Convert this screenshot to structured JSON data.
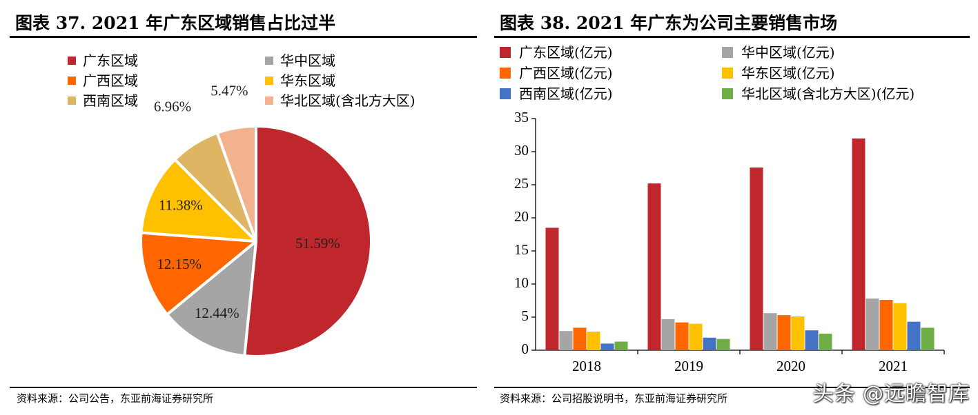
{
  "left_panel": {
    "title": "图表 37. 2021 年广东区域销售占比过半",
    "source": "资料来源：公司公告，东亚前海证券研究所"
  },
  "right_panel": {
    "title": "图表 38. 2021 年广东为公司主要销售市场",
    "source": "资料来源：公司招股说明书，东亚前海证券研究所"
  },
  "watermark": "头条 @远瞻智库",
  "colors": {
    "guangdong": "#C0272D",
    "huazhong": "#A5A5A5",
    "guangxi": "#FF6600",
    "huadong": "#FFC000",
    "xinan": "#DDB563",
    "huabei_pie": "#F2B28E",
    "xinan_bar": "#4472C4",
    "huabei_bar": "#70AD47"
  },
  "chart_data": [
    {
      "type": "pie",
      "title": "2021 年广东区域销售占比过半",
      "legend": [
        "广东区域",
        "华中区域",
        "广西区域",
        "华东区域",
        "西南区域",
        "华北区域(含北方大区)"
      ],
      "slices": [
        {
          "label": "广东区域",
          "value": 51.59,
          "display": "51.59%",
          "color": "#C0272D"
        },
        {
          "label": "华中区域",
          "value": 12.44,
          "display": "12.44%",
          "color": "#A5A5A5"
        },
        {
          "label": "广西区域",
          "value": 12.15,
          "display": "12.15%",
          "color": "#FF6600"
        },
        {
          "label": "华东区域",
          "value": 11.38,
          "display": "11.38%",
          "color": "#FFC000"
        },
        {
          "label": "西南区域",
          "value": 6.96,
          "display": "6.96%",
          "color": "#DDB563"
        },
        {
          "label": "华北区域(含北方大区)",
          "value": 5.47,
          "display": "5.47%",
          "color": "#F2B28E"
        }
      ]
    },
    {
      "type": "bar",
      "title": "2021 年广东为公司主要销售市场",
      "categories": [
        "2018",
        "2019",
        "2020",
        "2021"
      ],
      "ylim": [
        0,
        35
      ],
      "yticks": [
        "0",
        "5",
        "10",
        "15",
        "20",
        "25",
        "30",
        "35"
      ],
      "series": [
        {
          "name": "广东区域(亿元)",
          "color": "#C0272D",
          "values": [
            18.5,
            25.2,
            27.6,
            32.0
          ]
        },
        {
          "name": "华中区域(亿元)",
          "color": "#A5A5A5",
          "values": [
            2.9,
            4.7,
            5.6,
            7.8
          ]
        },
        {
          "name": "广西区域(亿元)",
          "color": "#FF6600",
          "values": [
            3.4,
            4.2,
            5.3,
            7.6
          ]
        },
        {
          "name": "华东区域(亿元)",
          "color": "#FFC000",
          "values": [
            2.8,
            4.0,
            5.1,
            7.1
          ]
        },
        {
          "name": "西南区域(亿元)",
          "color": "#4472C4",
          "values": [
            1.0,
            1.9,
            3.0,
            4.3
          ]
        },
        {
          "name": "华北区域(含北方大区)(亿元)",
          "color": "#70AD47",
          "values": [
            1.3,
            1.7,
            2.5,
            3.4
          ]
        }
      ]
    }
  ]
}
